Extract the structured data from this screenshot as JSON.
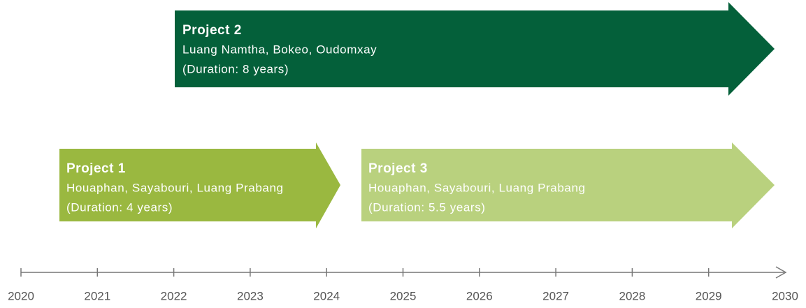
{
  "projects": [
    {
      "title": "Project 1",
      "regions": "Houaphan, Sayabouri, Luang Prabang",
      "duration": "(Duration: 4 years)"
    },
    {
      "title": "Project 2",
      "regions": "Luang Namtha, Bokeo, Oudomxay",
      "duration": "(Duration: 8 years)"
    },
    {
      "title": "Project 3",
      "regions": "Houaphan, Sayabouri, Luang Prabang",
      "duration": "(Duration: 5.5 years)"
    }
  ],
  "timeline": {
    "years": [
      "2020",
      "2021",
      "2022",
      "2023",
      "2024",
      "2025",
      "2026",
      "2027",
      "2028",
      "2029",
      "2030"
    ]
  }
}
